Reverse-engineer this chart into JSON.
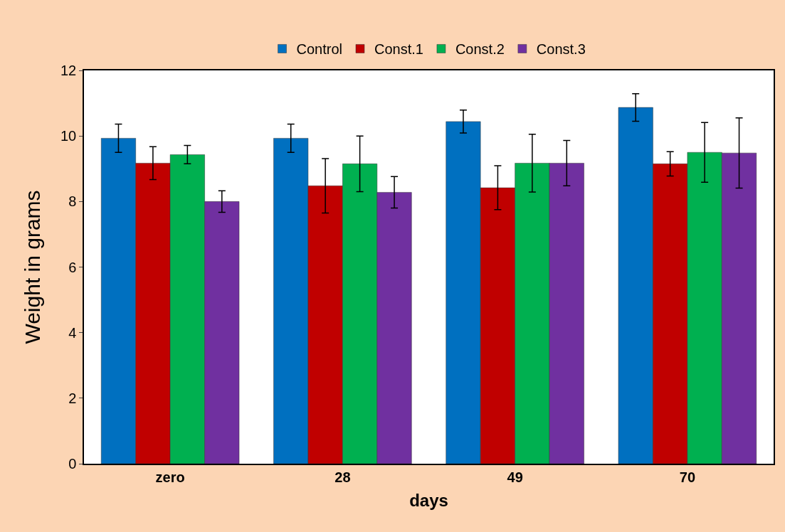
{
  "chart_data": {
    "type": "bar",
    "xlabel": "days",
    "ylabel": "Weight in grams",
    "categories": [
      "zero",
      "28",
      "49",
      "70"
    ],
    "series": [
      {
        "name": "Control",
        "color": "#0070c0",
        "values": [
          9.93,
          9.93,
          10.44,
          10.87
        ],
        "errors": [
          0.43,
          0.43,
          0.35,
          0.42
        ]
      },
      {
        "name": "Const.1",
        "color": "#c00000",
        "values": [
          9.17,
          8.48,
          8.42,
          9.15
        ],
        "errors": [
          0.5,
          0.83,
          0.67,
          0.37
        ]
      },
      {
        "name": "Const.2",
        "color": "#00b050",
        "values": [
          9.43,
          9.15,
          9.17,
          9.5
        ],
        "errors": [
          0.28,
          0.85,
          0.88,
          0.91
        ]
      },
      {
        "name": "Const.3",
        "color": "#7030a0",
        "values": [
          8.0,
          8.28,
          9.17,
          9.48
        ],
        "errors": [
          0.33,
          0.48,
          0.69,
          1.07
        ]
      }
    ],
    "ylim": [
      0,
      12
    ],
    "yticks": [
      0,
      2,
      4,
      6,
      8,
      10,
      12
    ],
    "grid": false,
    "legend": "top"
  }
}
